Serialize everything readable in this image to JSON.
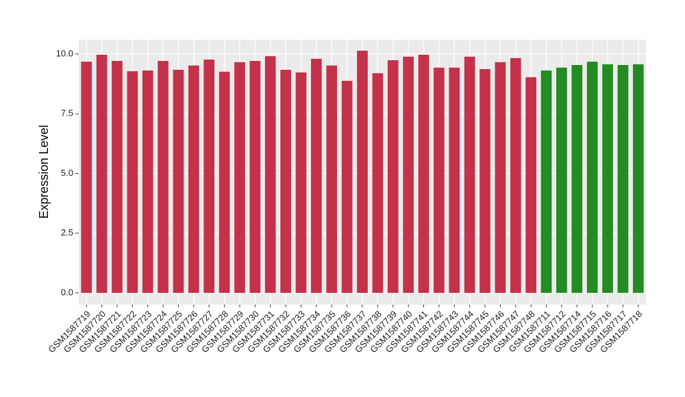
{
  "chart_data": {
    "type": "bar",
    "y_label": "Expression Level",
    "categories": [
      "GSM1587719",
      "GSM1587720",
      "GSM1587721",
      "GSM1587722",
      "GSM1587723",
      "GSM1587724",
      "GSM1587725",
      "GSM1587726",
      "GSM1587727",
      "GSM1587728",
      "GSM1587729",
      "GSM1587730",
      "GSM1587731",
      "GSM1587732",
      "GSM1587733",
      "GSM1587734",
      "GSM1587735",
      "GSM1587736",
      "GSM1587737",
      "GSM1587738",
      "GSM1587739",
      "GSM1587740",
      "GSM1587741",
      "GSM1587742",
      "GSM1587743",
      "GSM1587744",
      "GSM1587745",
      "GSM1587746",
      "GSM1587747",
      "GSM1587748",
      "GSM1587711",
      "GSM1587712",
      "GSM1587714",
      "GSM1587715",
      "GSM1587716",
      "GSM1587717",
      "GSM1587718"
    ],
    "values": [
      9.68,
      9.97,
      9.71,
      9.28,
      9.31,
      9.71,
      9.34,
      9.52,
      9.77,
      9.26,
      9.66,
      9.71,
      9.91,
      9.34,
      9.23,
      9.8,
      9.52,
      8.88,
      10.14,
      9.2,
      9.74,
      9.89,
      9.97,
      9.43,
      9.43,
      9.89,
      9.37,
      9.66,
      9.83,
      9.03,
      9.31,
      9.43,
      9.54,
      9.68,
      9.57,
      9.54,
      9.57
    ],
    "colors": [
      "#c3324a",
      "#c3324a",
      "#c3324a",
      "#c3324a",
      "#c3324a",
      "#c3324a",
      "#c3324a",
      "#c3324a",
      "#c3324a",
      "#c3324a",
      "#c3324a",
      "#c3324a",
      "#c3324a",
      "#c3324a",
      "#c3324a",
      "#c3324a",
      "#c3324a",
      "#c3324a",
      "#c3324a",
      "#c3324a",
      "#c3324a",
      "#c3324a",
      "#c3324a",
      "#c3324a",
      "#c3324a",
      "#c3324a",
      "#c3324a",
      "#c3324a",
      "#c3324a",
      "#c3324a",
      "#228b22",
      "#228b22",
      "#228b22",
      "#228b22",
      "#228b22",
      "#228b22",
      "#228b22"
    ],
    "ylim": [
      -0.49,
      10.6
    ],
    "yticks": [
      {
        "value": 0,
        "label": "0.0"
      },
      2.5,
      {
        "value": 5,
        "label": "5.0"
      },
      7.5,
      {
        "value": 10,
        "label": "10.0"
      }
    ],
    "grid": true
  }
}
